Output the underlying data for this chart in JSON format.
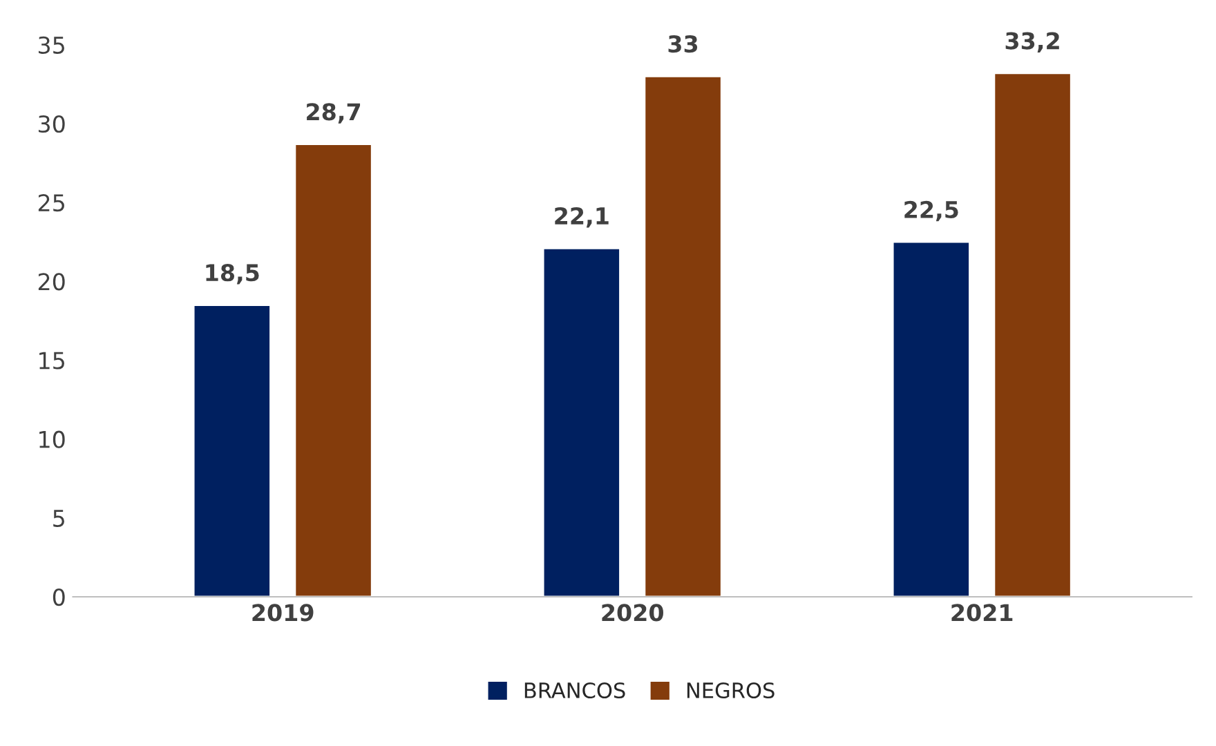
{
  "chart_data": {
    "type": "bar",
    "categories": [
      "2019",
      "2020",
      "2021"
    ],
    "series": [
      {
        "name": "BRANCOS",
        "color": "#002060",
        "values": [
          18.5,
          22.1,
          22.5
        ],
        "value_labels": [
          "18,5",
          "22,1",
          "22,5"
        ]
      },
      {
        "name": "NEGROS",
        "color": "#843c0c",
        "values": [
          28.7,
          33,
          33.2
        ],
        "value_labels": [
          "28,7",
          "33",
          "33,2"
        ]
      }
    ],
    "ylim": [
      0,
      35
    ],
    "yticks": [
      0,
      5,
      10,
      15,
      20,
      25,
      30,
      35
    ],
    "grid": false,
    "legend": "bottom"
  }
}
